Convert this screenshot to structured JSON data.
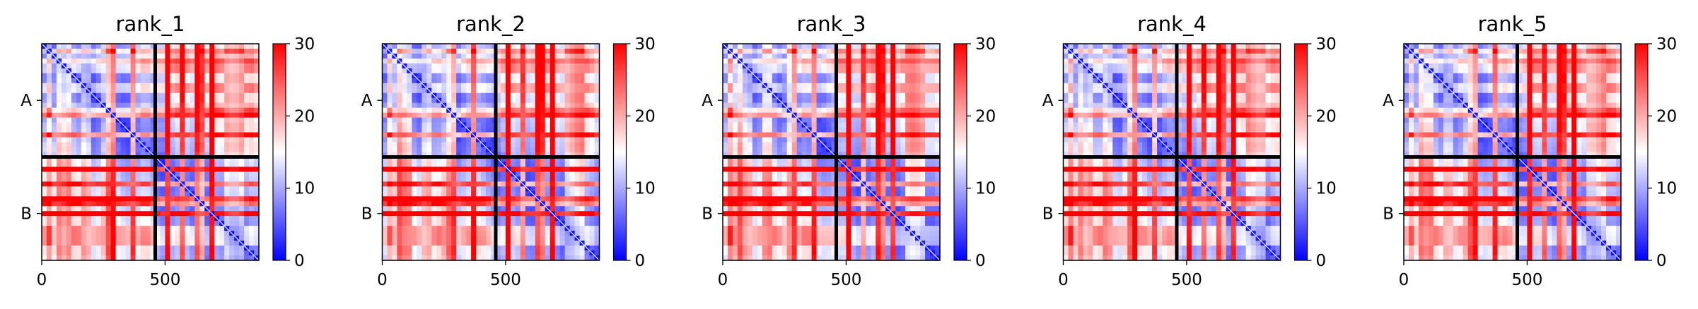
{
  "chart_data": [
    {
      "type": "heatmap",
      "title": "rank_1",
      "x_ticks": [
        {
          "value": 0,
          "label": "0"
        },
        {
          "value": 500,
          "label": "500"
        }
      ],
      "y_ticks": [
        {
          "value": 230,
          "label": "A"
        },
        {
          "value": 690,
          "label": "B"
        }
      ],
      "extent": [
        0,
        880
      ],
      "chain_break": 460,
      "heavy_rows": [
        62,
        100,
        180,
        262,
        295,
        375,
        510,
        565,
        628,
        655,
        690,
        760,
        800
      ],
      "light_rows": [
        30,
        140,
        220,
        340,
        420,
        540,
        600,
        720,
        840
      ],
      "colorbar": {
        "min": 0,
        "max": 30,
        "ticks": [
          0,
          10,
          20,
          30
        ],
        "colors": [
          "#0000ff",
          "#ffffff",
          "#ff0000"
        ]
      }
    },
    {
      "type": "heatmap",
      "title": "rank_2",
      "x_ticks": [
        {
          "value": 0,
          "label": "0"
        },
        {
          "value": 500,
          "label": "500"
        }
      ],
      "y_ticks": [
        {
          "value": 230,
          "label": "A"
        },
        {
          "value": 690,
          "label": "B"
        }
      ],
      "extent": [
        0,
        880
      ],
      "chain_break": 460,
      "heavy_rows": [
        62,
        100,
        180,
        262,
        295,
        375,
        510,
        565,
        628,
        655,
        690,
        760,
        800
      ],
      "light_rows": [
        30,
        140,
        220,
        340,
        420,
        540,
        600,
        720,
        840
      ],
      "colorbar": {
        "min": 0,
        "max": 30,
        "ticks": [
          0,
          10,
          20,
          30
        ],
        "colors": [
          "#0000ff",
          "#ffffff",
          "#ff0000"
        ]
      }
    },
    {
      "type": "heatmap",
      "title": "rank_3",
      "x_ticks": [
        {
          "value": 0,
          "label": "0"
        },
        {
          "value": 500,
          "label": "500"
        }
      ],
      "y_ticks": [
        {
          "value": 230,
          "label": "A"
        },
        {
          "value": 690,
          "label": "B"
        }
      ],
      "extent": [
        0,
        880
      ],
      "chain_break": 460,
      "heavy_rows": [
        62,
        100,
        180,
        262,
        295,
        375,
        510,
        565,
        628,
        655,
        690,
        760,
        800
      ],
      "light_rows": [
        30,
        140,
        220,
        340,
        420,
        540,
        600,
        720,
        840
      ],
      "colorbar": {
        "min": 0,
        "max": 30,
        "ticks": [
          0,
          10,
          20,
          30
        ],
        "colors": [
          "#0000ff",
          "#ffffff",
          "#ff0000"
        ]
      }
    },
    {
      "type": "heatmap",
      "title": "rank_4",
      "x_ticks": [
        {
          "value": 0,
          "label": "0"
        },
        {
          "value": 500,
          "label": "500"
        }
      ],
      "y_ticks": [
        {
          "value": 230,
          "label": "A"
        },
        {
          "value": 690,
          "label": "B"
        }
      ],
      "extent": [
        0,
        880
      ],
      "chain_break": 460,
      "heavy_rows": [
        62,
        100,
        180,
        262,
        295,
        375,
        510,
        565,
        628,
        655,
        690,
        760,
        800
      ],
      "light_rows": [
        30,
        140,
        220,
        340,
        420,
        540,
        600,
        720,
        840
      ],
      "colorbar": {
        "min": 0,
        "max": 30,
        "ticks": [
          0,
          10,
          20,
          30
        ],
        "colors": [
          "#0000ff",
          "#ffffff",
          "#ff0000"
        ]
      }
    },
    {
      "type": "heatmap",
      "title": "rank_5",
      "x_ticks": [
        {
          "value": 0,
          "label": "0"
        },
        {
          "value": 500,
          "label": "500"
        }
      ],
      "y_ticks": [
        {
          "value": 230,
          "label": "A"
        },
        {
          "value": 690,
          "label": "B"
        }
      ],
      "extent": [
        0,
        880
      ],
      "chain_break": 460,
      "heavy_rows": [
        62,
        100,
        180,
        262,
        295,
        375,
        510,
        565,
        628,
        655,
        690,
        760,
        800
      ],
      "light_rows": [
        30,
        140,
        220,
        340,
        420,
        540,
        600,
        720,
        840
      ],
      "colorbar": {
        "min": 0,
        "max": 30,
        "ticks": [
          0,
          10,
          20,
          30
        ],
        "colors": [
          "#0000ff",
          "#ffffff",
          "#ff0000"
        ]
      }
    }
  ]
}
